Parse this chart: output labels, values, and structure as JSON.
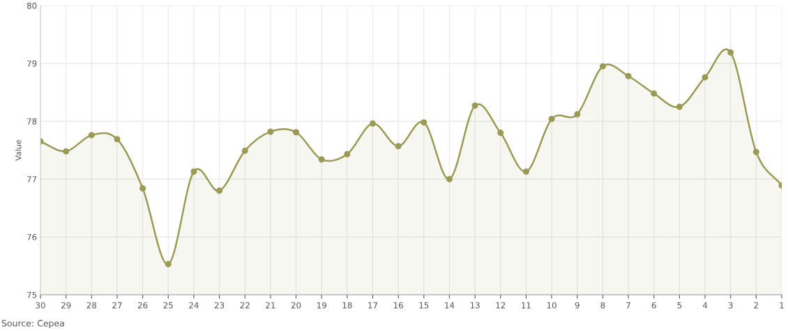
{
  "chart_data": {
    "type": "area",
    "ylabel": "Value",
    "categories": [
      "30",
      "29",
      "28",
      "27",
      "26",
      "25",
      "24",
      "23",
      "22",
      "21",
      "20",
      "19",
      "18",
      "17",
      "16",
      "15",
      "14",
      "13",
      "12",
      "11",
      "10",
      "9",
      "8",
      "7",
      "6",
      "5",
      "4",
      "3",
      "2",
      "1"
    ],
    "series": [
      {
        "color": "#9b9a55",
        "values": [
          77.65,
          77.48,
          77.76,
          77.69,
          76.84,
          75.53,
          77.13,
          76.8,
          77.49,
          77.82,
          77.81,
          77.34,
          77.43,
          77.96,
          77.57,
          77.98,
          77.0,
          78.27,
          77.8,
          77.13,
          78.04,
          78.12,
          78.95,
          78.78,
          78.48,
          78.25,
          78.76,
          79.19,
          77.47,
          76.89
        ]
      }
    ],
    "ylim": [
      75,
      80
    ],
    "yticks": [
      75,
      76,
      77,
      78,
      79,
      80
    ],
    "grid": true,
    "marker": "circle",
    "annotations": [
      "Source: Cepea"
    ]
  }
}
